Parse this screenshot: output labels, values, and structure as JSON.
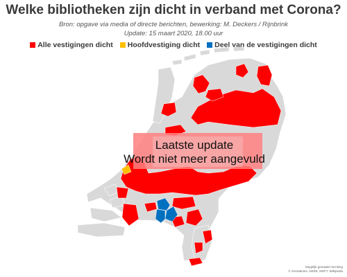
{
  "header": {
    "title": "Welke bibliotheken zijn dicht in verband met Corona?",
    "source_line": "Bron: opgave via media of directe berichten, bewerking: M. Deckers / Rijnbrink",
    "update_line": "Update: 15 maart 2020, 18.00 uur"
  },
  "legend": [
    {
      "label": "Alle vestigingen dicht",
      "color": "#ff0000"
    },
    {
      "label": "Hoofdvestiging dicht",
      "color": "#ffc000"
    },
    {
      "label": "Deel van de vestigingen dicht",
      "color": "#0070c0"
    }
  ],
  "map": {
    "base_color": "#d9d9d9",
    "overlay_box_color": "#ffffff",
    "overlay_line1": "Laatste update",
    "overlay_line2": "Wordt niet meer aangevuld"
  },
  "credits": {
    "line1": "Mogelijk gemaakt met Bing",
    "line2": "© GeoNames, HERE, MSFT, Wikipedia"
  }
}
